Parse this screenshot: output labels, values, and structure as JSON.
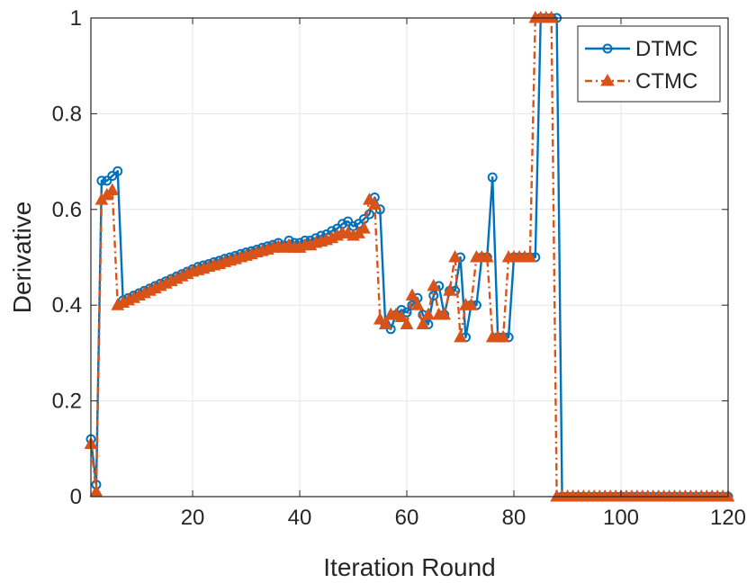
{
  "colors": {
    "dtmc": "#0072BD",
    "ctmc": "#D95319",
    "grid": "#e6e6e6",
    "axis": "#262626"
  },
  "chart_data": {
    "type": "line",
    "title": "",
    "xlabel": "Iteration Round",
    "ylabel": "Derivative",
    "xlim": [
      1,
      120
    ],
    "ylim": [
      0,
      1
    ],
    "grid": true,
    "legend_position": "top-right",
    "x_ticks": [
      20,
      40,
      60,
      80,
      100,
      120
    ],
    "x_tick_labels": [
      "20",
      "40",
      "60",
      "80",
      "100",
      "120"
    ],
    "y_ticks": [
      0,
      0.2,
      0.4,
      0.6,
      0.8,
      1
    ],
    "y_tick_labels": [
      "0",
      "0.2",
      "0.4",
      "0.6",
      "0.8",
      "1"
    ],
    "x": [
      1,
      2,
      3,
      4,
      5,
      6,
      7,
      8,
      9,
      10,
      11,
      12,
      13,
      14,
      15,
      16,
      17,
      18,
      19,
      20,
      21,
      22,
      23,
      24,
      25,
      26,
      27,
      28,
      29,
      30,
      31,
      32,
      33,
      34,
      35,
      36,
      37,
      38,
      39,
      40,
      41,
      42,
      43,
      44,
      45,
      46,
      47,
      48,
      49,
      50,
      51,
      52,
      53,
      54,
      55,
      56,
      57,
      58,
      59,
      60,
      61,
      62,
      63,
      64,
      65,
      66,
      67,
      68,
      69,
      70,
      71,
      72,
      73,
      74,
      75,
      76,
      77,
      78,
      79,
      80,
      81,
      82,
      83,
      84,
      85,
      86,
      87,
      88,
      89,
      90,
      91,
      92,
      93,
      94,
      95,
      96,
      97,
      98,
      99,
      100,
      101,
      102,
      103,
      104,
      105,
      106,
      107,
      108,
      109,
      110,
      111,
      112,
      113,
      114,
      115,
      116,
      117,
      118,
      119,
      120
    ],
    "series": [
      {
        "name": "DTMC",
        "marker": "circle",
        "line_style": "solid",
        "values": [
          0.12,
          0.025,
          0.66,
          0.66,
          0.67,
          0.68,
          0.41,
          0.415,
          0.42,
          0.425,
          0.43,
          0.435,
          0.44,
          0.445,
          0.45,
          0.455,
          0.46,
          0.465,
          0.47,
          0.475,
          0.48,
          0.483,
          0.486,
          0.49,
          0.493,
          0.497,
          0.5,
          0.503,
          0.507,
          0.51,
          0.513,
          0.516,
          0.52,
          0.523,
          0.526,
          0.53,
          0.525,
          0.535,
          0.53,
          0.53,
          0.535,
          0.535,
          0.54,
          0.545,
          0.548,
          0.555,
          0.56,
          0.57,
          0.575,
          0.565,
          0.57,
          0.58,
          0.59,
          0.625,
          0.6,
          0.36,
          0.35,
          0.38,
          0.39,
          0.385,
          0.4,
          0.415,
          0.38,
          0.36,
          0.42,
          0.44,
          0.38,
          0.43,
          0.43,
          0.5,
          0.333,
          0.4,
          0.4,
          0.5,
          0.5,
          0.667,
          0.333,
          0.333,
          0.333,
          0.5,
          0.5,
          0.5,
          0.5,
          0.5,
          1.0,
          1.0,
          1.0,
          1.0,
          0.0,
          0,
          0,
          0,
          0,
          0,
          0,
          0,
          0,
          0,
          0,
          0,
          0,
          0,
          0,
          0,
          0,
          0,
          0,
          0,
          0,
          0,
          0,
          0,
          0,
          0,
          0,
          0,
          0,
          0,
          0,
          0
        ]
      },
      {
        "name": "CTMC",
        "marker": "triangle",
        "line_style": "dash-dot",
        "values": [
          0.11,
          0.01,
          0.62,
          0.63,
          0.64,
          0.4,
          0.405,
          0.41,
          0.415,
          0.42,
          0.425,
          0.43,
          0.435,
          0.44,
          0.445,
          0.45,
          0.455,
          0.46,
          0.465,
          0.47,
          0.473,
          0.476,
          0.48,
          0.483,
          0.486,
          0.49,
          0.493,
          0.496,
          0.5,
          0.503,
          0.506,
          0.51,
          0.513,
          0.516,
          0.52,
          0.523,
          0.52,
          0.525,
          0.52,
          0.52,
          0.525,
          0.525,
          0.53,
          0.533,
          0.536,
          0.54,
          0.545,
          0.55,
          0.55,
          0.545,
          0.55,
          0.56,
          0.62,
          0.61,
          0.37,
          0.36,
          0.38,
          0.38,
          0.375,
          0.36,
          0.42,
          0.4,
          0.36,
          0.38,
          0.44,
          0.38,
          0.38,
          0.43,
          0.5,
          0.333,
          0.4,
          0.4,
          0.5,
          0.5,
          0.5,
          0.333,
          0.333,
          0.333,
          0.5,
          0.5,
          0.5,
          0.5,
          0.5,
          1.0,
          1.0,
          1.0,
          1.0,
          0.0,
          0,
          0,
          0,
          0,
          0,
          0,
          0,
          0,
          0,
          0,
          0,
          0,
          0,
          0,
          0,
          0,
          0,
          0,
          0,
          0,
          0,
          0,
          0,
          0,
          0,
          0,
          0,
          0,
          0,
          0,
          0,
          0
        ]
      }
    ]
  }
}
